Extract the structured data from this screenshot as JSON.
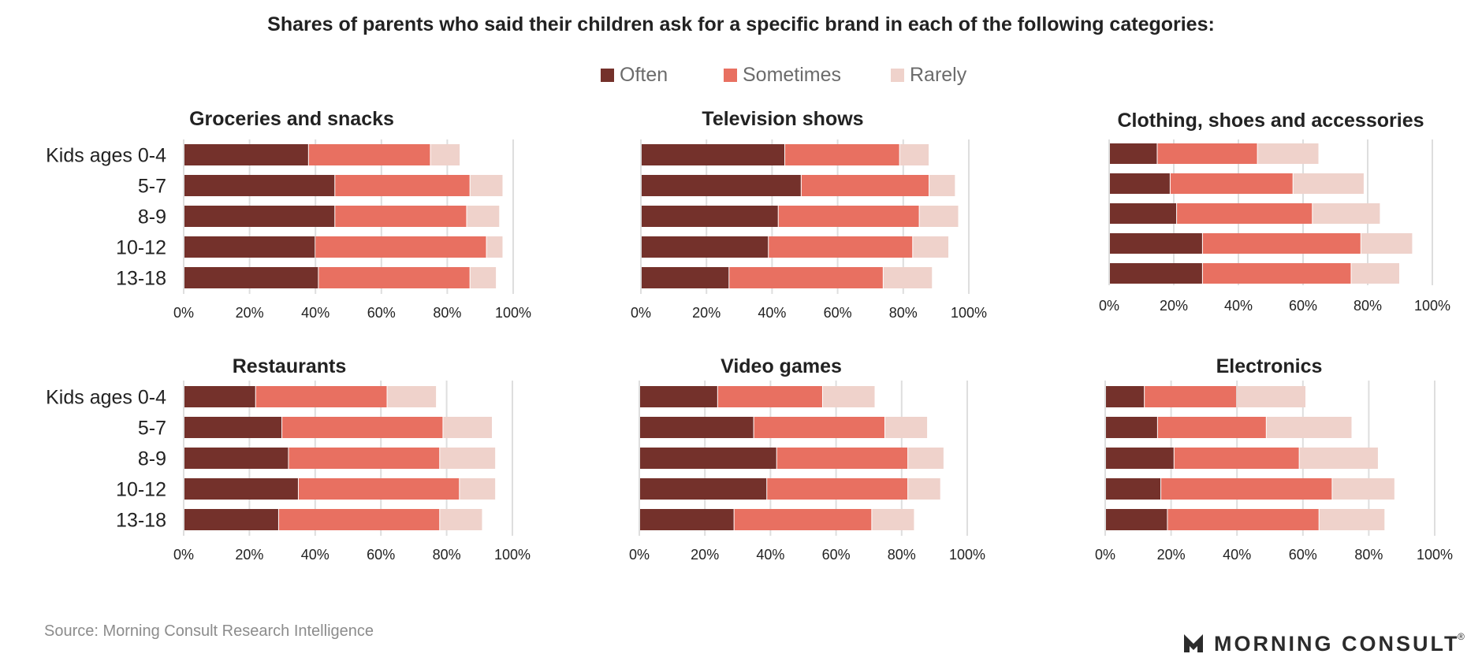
{
  "chart_data": {
    "type": "bar",
    "orientation": "horizontal",
    "stacked": true,
    "title": "Shares of parents who said their children ask for a specific brand in each of the following categories:",
    "legend": {
      "position": "top-center",
      "entries": [
        {
          "name": "Often",
          "color": "#74312b"
        },
        {
          "name": "Sometimes",
          "color": "#e87061"
        },
        {
          "name": "Rarely",
          "color": "#efd2cb"
        }
      ]
    },
    "xlim": [
      0,
      100
    ],
    "x_ticks": [
      "0%",
      "20%",
      "40%",
      "60%",
      "80%",
      "100%"
    ],
    "grid": "vertical",
    "categories": [
      "Kids ages 0-4",
      "5-7",
      "8-9",
      "10-12",
      "13-18"
    ],
    "panels": [
      {
        "title": "Groceries and snacks",
        "series": [
          {
            "name": "Often",
            "values": [
              38,
              46,
              46,
              40,
              41
            ]
          },
          {
            "name": "Sometimes",
            "values": [
              37,
              41,
              40,
              52,
              46
            ]
          },
          {
            "name": "Rarely",
            "values": [
              9,
              10,
              10,
              5,
              8
            ]
          }
        ]
      },
      {
        "title": "Television shows",
        "series": [
          {
            "name": "Often",
            "values": [
              44,
              49,
              42,
              39,
              27
            ]
          },
          {
            "name": "Sometimes",
            "values": [
              35,
              39,
              43,
              44,
              47
            ]
          },
          {
            "name": "Rarely",
            "values": [
              9,
              8,
              12,
              11,
              15
            ]
          }
        ]
      },
      {
        "title": "Clothing, shoes and accessories",
        "series": [
          {
            "name": "Often",
            "values": [
              15,
              19,
              21,
              29,
              29
            ]
          },
          {
            "name": "Sometimes",
            "values": [
              31,
              38,
              42,
              49,
              46
            ]
          },
          {
            "name": "Rarely",
            "values": [
              19,
              22,
              21,
              16,
              15
            ]
          }
        ]
      },
      {
        "title": "Restaurants",
        "series": [
          {
            "name": "Often",
            "values": [
              22,
              30,
              32,
              35,
              29
            ]
          },
          {
            "name": "Sometimes",
            "values": [
              40,
              49,
              46,
              49,
              49
            ]
          },
          {
            "name": "Rarely",
            "values": [
              15,
              15,
              17,
              11,
              13
            ]
          }
        ]
      },
      {
        "title": "Video games",
        "series": [
          {
            "name": "Often",
            "values": [
              24,
              35,
              42,
              39,
              29
            ]
          },
          {
            "name": "Sometimes",
            "values": [
              32,
              40,
              40,
              43,
              42
            ]
          },
          {
            "name": "Rarely",
            "values": [
              16,
              13,
              11,
              10,
              13
            ]
          }
        ]
      },
      {
        "title": "Electronics",
        "series": [
          {
            "name": "Often",
            "values": [
              12,
              16,
              21,
              17,
              19
            ]
          },
          {
            "name": "Sometimes",
            "values": [
              28,
              33,
              38,
              52,
              46
            ]
          },
          {
            "name": "Rarely",
            "values": [
              21,
              26,
              24,
              19,
              20
            ]
          }
        ]
      }
    ]
  },
  "source": "Source: Morning Consult Research Intelligence",
  "logo": {
    "text": "MORNING CONSULT",
    "registered_mark": "®"
  }
}
